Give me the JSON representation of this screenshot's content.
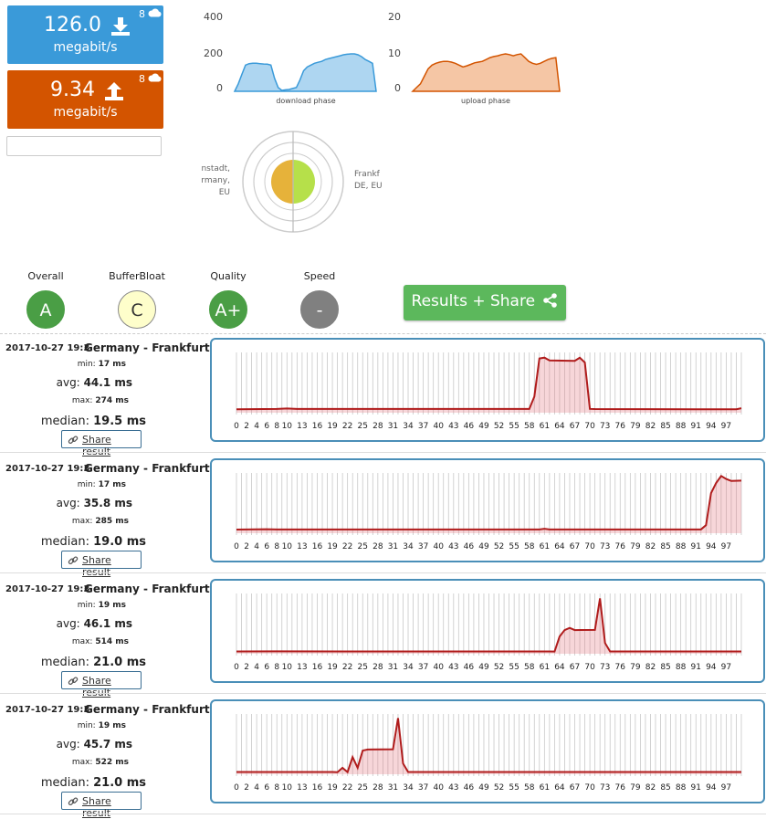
{
  "download": {
    "value": "126.0",
    "unit": "megabit/s",
    "count": "8",
    "color": "#3a9ad9"
  },
  "upload": {
    "value": "9.34",
    "unit": "megabit/s",
    "count": "8",
    "color": "#d35400"
  },
  "download_chart": {
    "yticks": [
      "400",
      "200",
      "0"
    ],
    "label": "download phase",
    "values": [
      0,
      40,
      90,
      140,
      148,
      150,
      150,
      148,
      146,
      145,
      140,
      70,
      20,
      5,
      8,
      10,
      15,
      20,
      60,
      110,
      130,
      140,
      150,
      155,
      160,
      170,
      175,
      180,
      185,
      190,
      195,
      198,
      200,
      200,
      195,
      185,
      170,
      160,
      150,
      0
    ]
  },
  "upload_chart": {
    "yticks": [
      "20",
      "10",
      "0"
    ],
    "label": "upload phase",
    "values": [
      0,
      1,
      2,
      4,
      6,
      7,
      7.5,
      7.8,
      8,
      8,
      7.8,
      7.5,
      7,
      6.5,
      6.8,
      7.2,
      7.6,
      7.8,
      8,
      8.5,
      9,
      9.3,
      9.5,
      9.8,
      10,
      9.8,
      9.5,
      9.8,
      10,
      9,
      8,
      7.5,
      7.2,
      7.5,
      8,
      8.5,
      8.8,
      9,
      0
    ]
  },
  "locations": {
    "left": [
      "nstadt,",
      "rmany,",
      "EU"
    ],
    "right": [
      "Frankf",
      "DE, EU"
    ]
  },
  "grades": [
    {
      "label": "Overall",
      "value": "A",
      "bg": "#4a9e45",
      "fg": "#ffffff",
      "border": "#4a9e45"
    },
    {
      "label": "BufferBloat",
      "value": "C",
      "bg": "#fefecb",
      "fg": "#333333",
      "border": "#888888"
    },
    {
      "label": "Quality",
      "value": "A+",
      "bg": "#4a9e45",
      "fg": "#ffffff",
      "border": "#4a9e45"
    },
    {
      "label": "Speed",
      "value": "-",
      "bg": "#808080",
      "fg": "#ffffff",
      "border": "#808080"
    }
  ],
  "results_button": "Results + Share",
  "ping_xticks": [
    "0",
    "2",
    "4",
    "6",
    "8",
    "10",
    "13",
    "16",
    "19",
    "22",
    "25",
    "28",
    "31",
    "34",
    "37",
    "40",
    "43",
    "46",
    "49",
    "52",
    "55",
    "58",
    "61",
    "64",
    "67",
    "70",
    "73",
    "76",
    "79",
    "82",
    "85",
    "88",
    "91",
    "94",
    "97"
  ],
  "results": [
    {
      "date": "2017-10-27 19:3",
      "server": "Germany - Frankfurt",
      "min_label": "min:",
      "min": "17 ms",
      "avg_label": "avg:",
      "avg": "44.1 ms",
      "max_label": "max:",
      "max": "274 ms",
      "median_label": "median:",
      "median": "19.5 ms",
      "share": "Share result",
      "chart_data": {
        "type": "line",
        "ylim": [
          0,
          300
        ],
        "segments": [
          [
            0,
            17
          ],
          [
            8,
            19
          ],
          [
            10,
            21
          ],
          [
            12,
            19
          ],
          [
            58,
            19
          ],
          [
            59,
            80
          ],
          [
            60,
            270
          ],
          [
            61,
            274
          ],
          [
            62,
            260
          ],
          [
            67,
            258
          ],
          [
            68,
            274
          ],
          [
            69,
            250
          ],
          [
            70,
            19
          ],
          [
            71,
            18
          ],
          [
            99,
            17
          ],
          [
            100,
            22
          ]
        ]
      }
    },
    {
      "date": "2017-10-27 19:3",
      "server": "Germany - Frankfurt",
      "min_label": "min:",
      "min": "17 ms",
      "avg_label": "avg:",
      "avg": "35.8 ms",
      "max_label": "max:",
      "max": "285 ms",
      "median_label": "median:",
      "median": "19.0 ms",
      "share": "Share result",
      "chart_data": {
        "type": "line",
        "ylim": [
          0,
          300
        ],
        "segments": [
          [
            0,
            18
          ],
          [
            6,
            20
          ],
          [
            8,
            19
          ],
          [
            60,
            19
          ],
          [
            61,
            22
          ],
          [
            62,
            19
          ],
          [
            92,
            19
          ],
          [
            93,
            40
          ],
          [
            94,
            200
          ],
          [
            95,
            250
          ],
          [
            96,
            285
          ],
          [
            97,
            270
          ],
          [
            98,
            260
          ],
          [
            100,
            262
          ]
        ]
      }
    },
    {
      "date": "2017-10-27 19:3",
      "server": "Germany - Frankfurt",
      "min_label": "min:",
      "min": "19 ms",
      "avg_label": "avg:",
      "avg": "46.1 ms",
      "max_label": "max:",
      "max": "514 ms",
      "median_label": "median:",
      "median": "21.0 ms",
      "share": "Share result",
      "chart_data": {
        "type": "line",
        "ylim": [
          0,
          560
        ],
        "segments": [
          [
            0,
            21
          ],
          [
            8,
            22
          ],
          [
            62,
            21
          ],
          [
            63,
            20
          ],
          [
            64,
            160
          ],
          [
            65,
            220
          ],
          [
            66,
            240
          ],
          [
            67,
            220
          ],
          [
            71,
            222
          ],
          [
            72,
            514
          ],
          [
            73,
            100
          ],
          [
            74,
            21
          ],
          [
            100,
            21
          ]
        ]
      }
    },
    {
      "date": "2017-10-27 19:3",
      "server": "Germany - Frankfurt",
      "min_label": "min:",
      "min": "19 ms",
      "avg_label": "avg:",
      "avg": "45.7 ms",
      "max_label": "max:",
      "max": "522 ms",
      "median_label": "median:",
      "median": "21.0 ms",
      "share": "Share result",
      "chart_data": {
        "type": "line",
        "ylim": [
          0,
          560
        ],
        "segments": [
          [
            0,
            21
          ],
          [
            19,
            21
          ],
          [
            20,
            19
          ],
          [
            21,
            60
          ],
          [
            22,
            20
          ],
          [
            23,
            160
          ],
          [
            24,
            60
          ],
          [
            25,
            220
          ],
          [
            26,
            230
          ],
          [
            31,
            232
          ],
          [
            32,
            522
          ],
          [
            33,
            100
          ],
          [
            34,
            21
          ],
          [
            100,
            21
          ]
        ]
      }
    }
  ]
}
